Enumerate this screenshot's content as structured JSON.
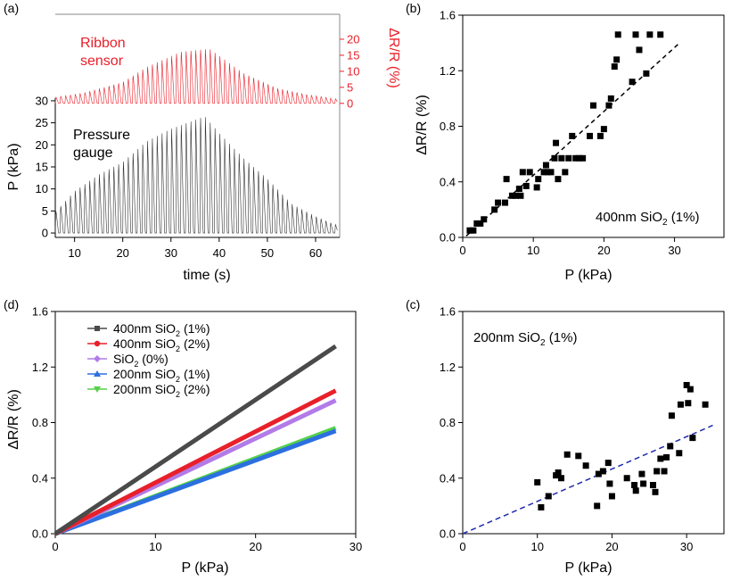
{
  "chart_data": [
    {
      "panel": "(a)",
      "type": "line",
      "xlabel": "time (s)",
      "xlim": [
        6,
        65
      ],
      "xticks": [
        "10",
        "20",
        "30",
        "40",
        "50",
        "60"
      ],
      "top": {
        "label_line1": "Ribbon",
        "label_line2": "sensor",
        "ylabel": "ΔR/R (%)",
        "ylim": [
          -2,
          25
        ],
        "yticks": [
          "0",
          "5",
          "10",
          "15",
          "20"
        ],
        "color": "#e8202a",
        "envelope": {
          "t": [
            6,
            12,
            20,
            25,
            32,
            38,
            45,
            52,
            58,
            64
          ],
          "peak": [
            2,
            3.5,
            7,
            12,
            17,
            18,
            10,
            5,
            3,
            1.5
          ]
        }
      },
      "bottom": {
        "label_line1": "Pressure",
        "label_line2": "gauge",
        "ylabel": "P (kPa)",
        "ylim": [
          -1,
          31
        ],
        "yticks": [
          "0",
          "5",
          "10",
          "15",
          "20",
          "25",
          "30"
        ],
        "color": "#333333",
        "envelope": {
          "t": [
            6,
            10,
            15,
            20,
            25,
            30,
            37,
            40,
            45,
            50,
            55,
            60,
            64
          ],
          "peak": [
            5,
            10,
            14,
            17,
            22,
            25,
            28,
            24,
            18,
            13,
            7,
            4,
            2
          ]
        }
      }
    },
    {
      "panel": "(b)",
      "type": "scatter",
      "xlabel": "P (kPa)",
      "ylabel": "ΔR/R (%)",
      "xlim": [
        0,
        37
      ],
      "ylim": [
        0,
        1.6
      ],
      "xticks": [
        "0",
        "10",
        "20",
        "30"
      ],
      "yticks": [
        "0.0",
        "0.4",
        "0.8",
        "1.2",
        "1.6"
      ],
      "annotation_main": "400nm SiO",
      "annotation_sub": "2",
      "annotation_tail": " (1%)",
      "points": [
        [
          1,
          0.05
        ],
        [
          1.5,
          0.05
        ],
        [
          2,
          0.1
        ],
        [
          2.5,
          0.1
        ],
        [
          3,
          0.13
        ],
        [
          4.5,
          0.2
        ],
        [
          5,
          0.25
        ],
        [
          6,
          0.25
        ],
        [
          6.2,
          0.42
        ],
        [
          7,
          0.3
        ],
        [
          7.5,
          0.3
        ],
        [
          8,
          0.35
        ],
        [
          8.2,
          0.3
        ],
        [
          8.5,
          0.47
        ],
        [
          9,
          0.37
        ],
        [
          9.5,
          0.47
        ],
        [
          10.5,
          0.36
        ],
        [
          10.7,
          0.42
        ],
        [
          11.5,
          0.47
        ],
        [
          11.8,
          0.52
        ],
        [
          12,
          0.47
        ],
        [
          12.5,
          0.47
        ],
        [
          13,
          0.57
        ],
        [
          13.2,
          0.68
        ],
        [
          13.5,
          0.42
        ],
        [
          14,
          0.57
        ],
        [
          14.5,
          0.47
        ],
        [
          15,
          0.57
        ],
        [
          15.5,
          0.73
        ],
        [
          16,
          0.57
        ],
        [
          16.5,
          0.57
        ],
        [
          17,
          0.57
        ],
        [
          18,
          0.73
        ],
        [
          18.5,
          0.95
        ],
        [
          19.5,
          0.73
        ],
        [
          20,
          0.78
        ],
        [
          20.7,
          0.95
        ],
        [
          21,
          1.0
        ],
        [
          21.5,
          1.23
        ],
        [
          21.8,
          1.28
        ],
        [
          22,
          1.46
        ],
        [
          24,
          1.12
        ],
        [
          24.5,
          1.46
        ],
        [
          25,
          1.35
        ],
        [
          26,
          1.18
        ],
        [
          26.5,
          1.46
        ],
        [
          28,
          1.46
        ]
      ],
      "fit": {
        "x": [
          0.5,
          30.5
        ],
        "y": [
          0.01,
          1.39
        ]
      }
    },
    {
      "panel": "(c)",
      "type": "scatter",
      "xlabel": "P (kPa)",
      "ylabel": "",
      "xlim": [
        0,
        35
      ],
      "ylim": [
        0,
        1.6
      ],
      "xticks": [
        "0",
        "10",
        "20",
        "30"
      ],
      "yticks": [
        "0.0",
        "0.4",
        "0.8",
        "1.2",
        "1.6"
      ],
      "annotation_main": "200nm SiO",
      "annotation_sub": "2",
      "annotation_tail": " (1%)",
      "points": [
        [
          10,
          0.37
        ],
        [
          10.5,
          0.19
        ],
        [
          11.5,
          0.27
        ],
        [
          12.5,
          0.42
        ],
        [
          12.8,
          0.44
        ],
        [
          13.2,
          0.4
        ],
        [
          14,
          0.57
        ],
        [
          15.5,
          0.56
        ],
        [
          16.5,
          0.49
        ],
        [
          18,
          0.2
        ],
        [
          18.2,
          0.43
        ],
        [
          18.8,
          0.45
        ],
        [
          19.5,
          0.51
        ],
        [
          19.7,
          0.36
        ],
        [
          20,
          0.27
        ],
        [
          22,
          0.4
        ],
        [
          23,
          0.35
        ],
        [
          23.2,
          0.31
        ],
        [
          24,
          0.43
        ],
        [
          24.2,
          0.36
        ],
        [
          25.5,
          0.35
        ],
        [
          25.8,
          0.3
        ],
        [
          26,
          0.45
        ],
        [
          26.5,
          0.54
        ],
        [
          27,
          0.45
        ],
        [
          27.3,
          0.55
        ],
        [
          27.8,
          0.63
        ],
        [
          28,
          0.85
        ],
        [
          29,
          0.58
        ],
        [
          29.2,
          0.93
        ],
        [
          30,
          1.07
        ],
        [
          30.2,
          0.94
        ],
        [
          30.5,
          1.04
        ],
        [
          30.8,
          0.69
        ],
        [
          32.5,
          0.93
        ]
      ],
      "fit": {
        "x": [
          0,
          33.5
        ],
        "y": [
          0,
          0.78
        ]
      }
    },
    {
      "panel": "(d)",
      "type": "line",
      "xlabel": "P (kPa)",
      "ylabel": "ΔR/R (%)",
      "xlim": [
        0,
        30
      ],
      "ylim": [
        0,
        1.6
      ],
      "xticks": [
        "0",
        "10",
        "20",
        "30"
      ],
      "yticks": [
        "0.0",
        "0.4",
        "0.8",
        "1.2",
        "1.6"
      ],
      "series": [
        {
          "name": "400nm SiO",
          "sub": "2",
          "tail": " (1%)",
          "color": "#4a4a4a",
          "marker": "square",
          "x": [
            0,
            28
          ],
          "y": [
            0,
            1.35
          ]
        },
        {
          "name": "400nm SiO",
          "sub": "2",
          "tail": " (2%)",
          "color": "#e8202a",
          "marker": "circle",
          "x": [
            0,
            28
          ],
          "y": [
            0,
            1.03
          ]
        },
        {
          "name": "SiO",
          "sub": "2",
          "tail": " (0%)",
          "color": "#b27be8",
          "marker": "diamond",
          "x": [
            0,
            28
          ],
          "y": [
            0,
            0.96
          ]
        },
        {
          "name": "200nm SiO",
          "sub": "2",
          "tail": " (1%)",
          "color": "#2c6fe0",
          "marker": "triangle-up",
          "x": [
            0,
            28
          ],
          "y": [
            0,
            0.74
          ]
        },
        {
          "name": "200nm SiO",
          "sub": "2",
          "tail": " (2%)",
          "color": "#55d04c",
          "marker": "triangle-down",
          "x": [
            0,
            28
          ],
          "y": [
            0,
            0.76
          ]
        }
      ]
    }
  ]
}
